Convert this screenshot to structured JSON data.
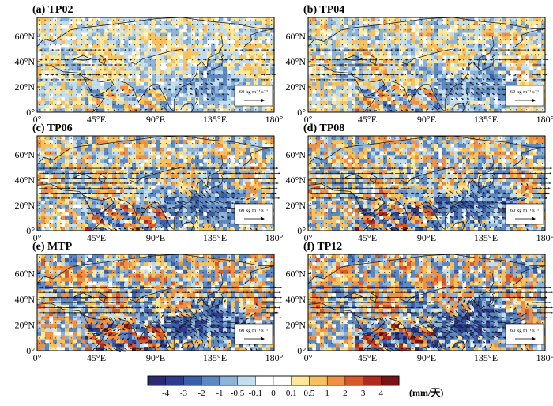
{
  "figure": {
    "colorbar_unit": "(mm/天)",
    "reference_vector_label": "60 kg m⁻¹ s⁻¹"
  },
  "chart_data": [
    {
      "type": "heatmap",
      "title": "(a) TP02",
      "intensity": 0.45,
      "x_ticks": [
        "0°",
        "45°E",
        "90°E",
        "135°E",
        "180°"
      ],
      "y_ticks": [
        "0°",
        "20°N",
        "40°N",
        "60°N"
      ],
      "xlim": [
        0,
        180
      ],
      "ylim": [
        0,
        75
      ],
      "overlay": "moisture flux vectors"
    },
    {
      "type": "heatmap",
      "title": "(b) TP04",
      "intensity": 0.6,
      "x_ticks": [
        "0°",
        "45°E",
        "90°E",
        "135°E",
        "180°"
      ],
      "y_ticks": [
        "0°",
        "20°N",
        "40°N",
        "60°N"
      ],
      "xlim": [
        0,
        180
      ],
      "ylim": [
        0,
        75
      ],
      "overlay": "moisture flux vectors"
    },
    {
      "type": "heatmap",
      "title": "(c) TP06",
      "intensity": 0.85,
      "x_ticks": [
        "0°",
        "45°E",
        "90°E",
        "135°E",
        "180°"
      ],
      "y_ticks": [
        "0°",
        "20°N",
        "40°N",
        "60°N"
      ],
      "xlim": [
        0,
        180
      ],
      "ylim": [
        0,
        75
      ],
      "overlay": "moisture flux vectors"
    },
    {
      "type": "heatmap",
      "title": "(d) TP08",
      "intensity": 1.0,
      "x_ticks": [
        "0°",
        "45°E",
        "90°E",
        "135°E",
        "180°"
      ],
      "y_ticks": [
        "0°",
        "20°N",
        "40°N",
        "60°N"
      ],
      "xlim": [
        0,
        180
      ],
      "ylim": [
        0,
        75
      ],
      "overlay": "moisture flux vectors"
    },
    {
      "type": "heatmap",
      "title": "(e) MTP",
      "intensity": 1.2,
      "x_ticks": [
        "0°",
        "45°E",
        "90°E",
        "135°E",
        "180°"
      ],
      "y_ticks": [
        "0°",
        "20°N",
        "40°N",
        "60°N"
      ],
      "xlim": [
        0,
        180
      ],
      "ylim": [
        0,
        75
      ],
      "overlay": "moisture flux vectors"
    },
    {
      "type": "heatmap",
      "title": "(f) TP12",
      "intensity": 1.25,
      "x_ticks": [
        "0°",
        "45°E",
        "90°E",
        "135°E",
        "180°"
      ],
      "y_ticks": [
        "0°",
        "20°N",
        "40°N",
        "60°N"
      ],
      "xlim": [
        0,
        180
      ],
      "ylim": [
        0,
        75
      ],
      "overlay": "moisture flux vectors"
    }
  ],
  "colorbar": {
    "levels": [
      "-4",
      "-3",
      "-2",
      "-1",
      "-0.5",
      "-0.1",
      "0",
      "0.1",
      "0.5",
      "1",
      "2",
      "3",
      "4"
    ],
    "colors": [
      "#2b2a6e",
      "#2f3b8f",
      "#3a5fa8",
      "#5c87c0",
      "#8db4d8",
      "#c4ddec",
      "#ffffff",
      "#ffffff",
      "#fde79a",
      "#f7c15e",
      "#ee9144",
      "#d8582a",
      "#b02a1f",
      "#7a1414"
    ]
  }
}
